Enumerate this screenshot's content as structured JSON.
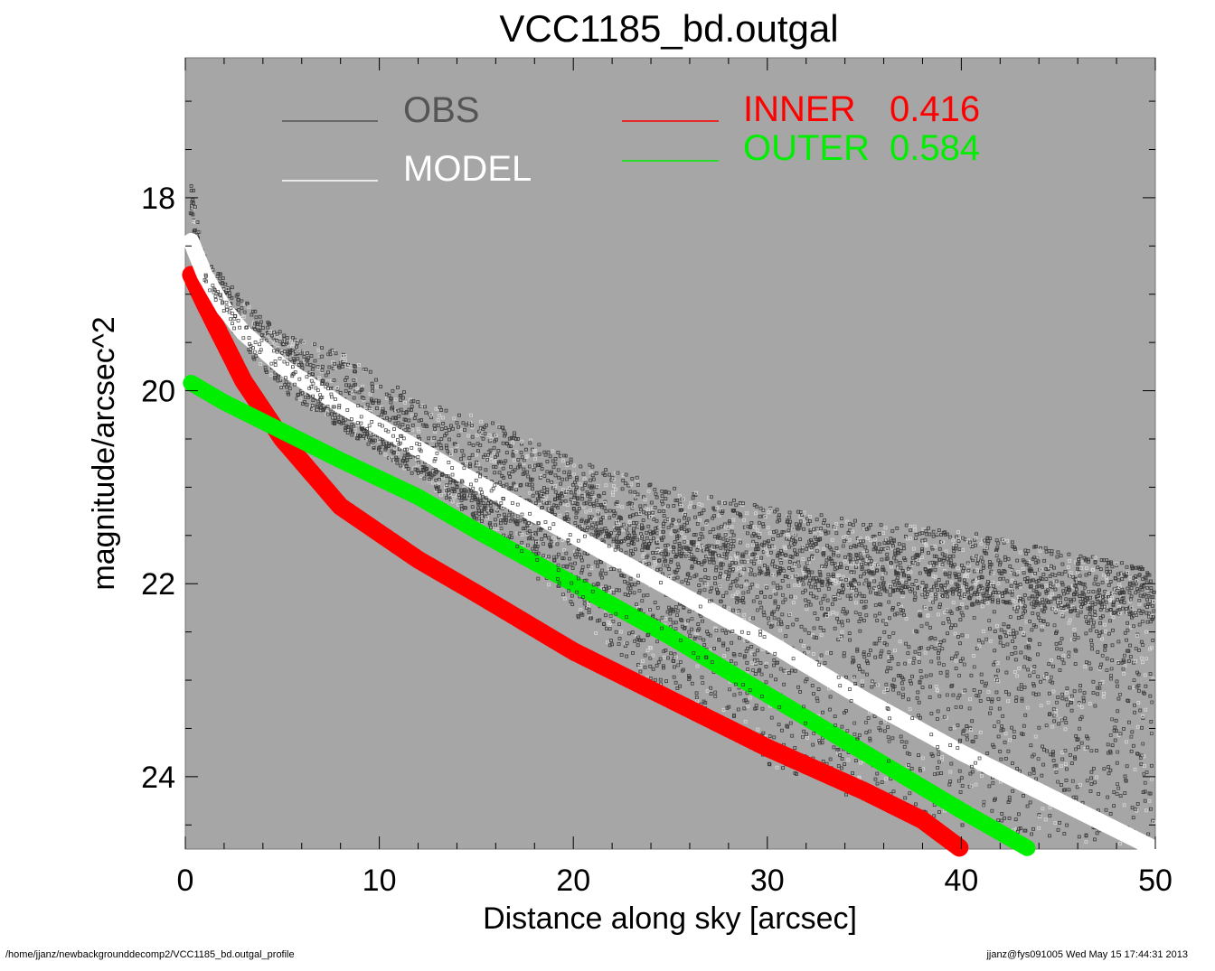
{
  "chart_data": {
    "type": "scatter",
    "title": "VCC1185_bd.outgal",
    "xlabel": "Distance along sky [arcsec]",
    "ylabel": "magnitude/arcsec^2",
    "xlim": [
      0,
      50
    ],
    "ylim": [
      24.75,
      16.55
    ],
    "y_inverted": true,
    "x_ticks": [
      "0",
      "10",
      "20",
      "30",
      "40",
      "50"
    ],
    "y_ticks": [
      "18",
      "20",
      "22",
      "24"
    ],
    "plot_background": "#a6a6a6",
    "grid": false,
    "legend": [
      {
        "name": "OBS",
        "value": "",
        "color": "#555555"
      },
      {
        "name": "MODEL",
        "value": "",
        "color": "#ffffff"
      },
      {
        "name": "INNER",
        "value": "0.416",
        "color": "#ff0000"
      },
      {
        "name": "OUTER",
        "value": "0.584",
        "color": "#00ee00"
      }
    ],
    "series": [
      {
        "name": "OBS",
        "color": "#444444",
        "x": [
          0.3,
          1,
          3,
          5,
          8,
          12,
          15,
          20,
          25,
          30,
          35,
          40,
          45,
          50
        ],
        "y": [
          18.1,
          18.8,
          19.35,
          19.7,
          20.1,
          20.6,
          20.95,
          21.4,
          21.7,
          21.9,
          22.05,
          22.15,
          22.25,
          22.35
        ],
        "scatter_upper": [
          0.3,
          0.2,
          0.3,
          0.3,
          0.5,
          0.5,
          0.7,
          0.7,
          0.7,
          0.7,
          0.7,
          0.7,
          0.6,
          0.5
        ],
        "scatter_lower": [
          0.1,
          0.1,
          0.2,
          0.3,
          0.3,
          0.3,
          0.4,
          0.9,
          1.5,
          2.0,
          2.2,
          2.4,
          2.4,
          2.4
        ]
      },
      {
        "name": "MODEL",
        "color": "#ffffff",
        "x": [
          0.3,
          1,
          2,
          3,
          5,
          8,
          12,
          15,
          20,
          25,
          30,
          35,
          40,
          45,
          50
        ],
        "y": [
          18.45,
          18.8,
          19.15,
          19.4,
          19.75,
          20.15,
          20.6,
          20.95,
          21.5,
          22.05,
          22.6,
          23.2,
          23.75,
          24.25,
          24.75
        ]
      },
      {
        "name": "INNER",
        "color": "#ff0000",
        "x": [
          0.3,
          1,
          2,
          3,
          4,
          5,
          8,
          12,
          15,
          20,
          25,
          30,
          35,
          38,
          40
        ],
        "y": [
          18.8,
          19.1,
          19.5,
          19.9,
          20.2,
          20.5,
          21.2,
          21.75,
          22.1,
          22.7,
          23.2,
          23.7,
          24.15,
          24.45,
          24.75
        ]
      },
      {
        "name": "OUTER",
        "color": "#00ee00",
        "x": [
          0.3,
          2,
          5,
          8,
          12,
          15,
          20,
          25,
          30,
          35,
          40,
          43.5
        ],
        "y": [
          19.92,
          20.12,
          20.42,
          20.72,
          21.1,
          21.45,
          22.0,
          22.55,
          23.15,
          23.75,
          24.35,
          24.75
        ]
      }
    ]
  },
  "footer": {
    "path": "/home/jjanz/newbackgrounddecomp2/VCC1185_bd.outgal_profile",
    "stamp": "jjanz@fys091005  Wed May 15 17:44:31 2013"
  }
}
